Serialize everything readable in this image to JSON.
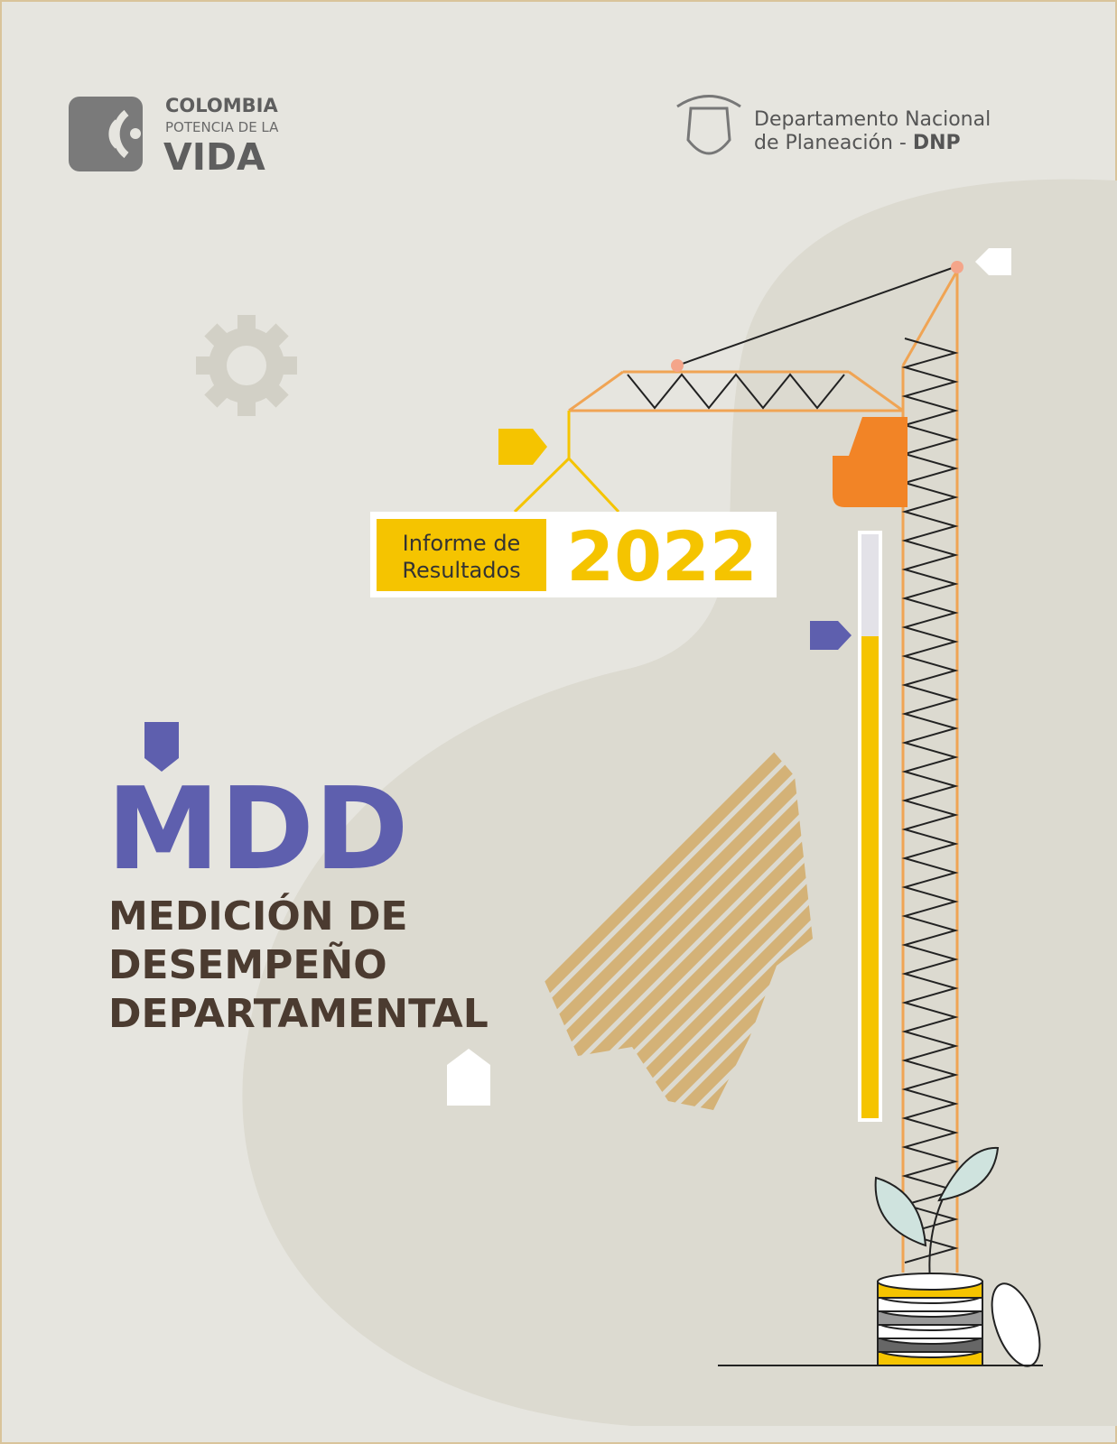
{
  "header": {
    "logo_left": {
      "line1": "COLOMBIA",
      "line2": "POTENCIA DE LA",
      "line3": "VIDA"
    },
    "logo_right": {
      "line1": "Departamento Nacional",
      "line2": "de Planeación -",
      "line2_bold": "DNP"
    }
  },
  "badge": {
    "label_line1": "Informe de",
    "label_line2": "Resultados",
    "year": "2022"
  },
  "title": {
    "acronym": "MDD",
    "lines": [
      "MEDICIÓN DE",
      "DESEMPEÑO",
      "DEPARTAMENTAL"
    ]
  }
}
